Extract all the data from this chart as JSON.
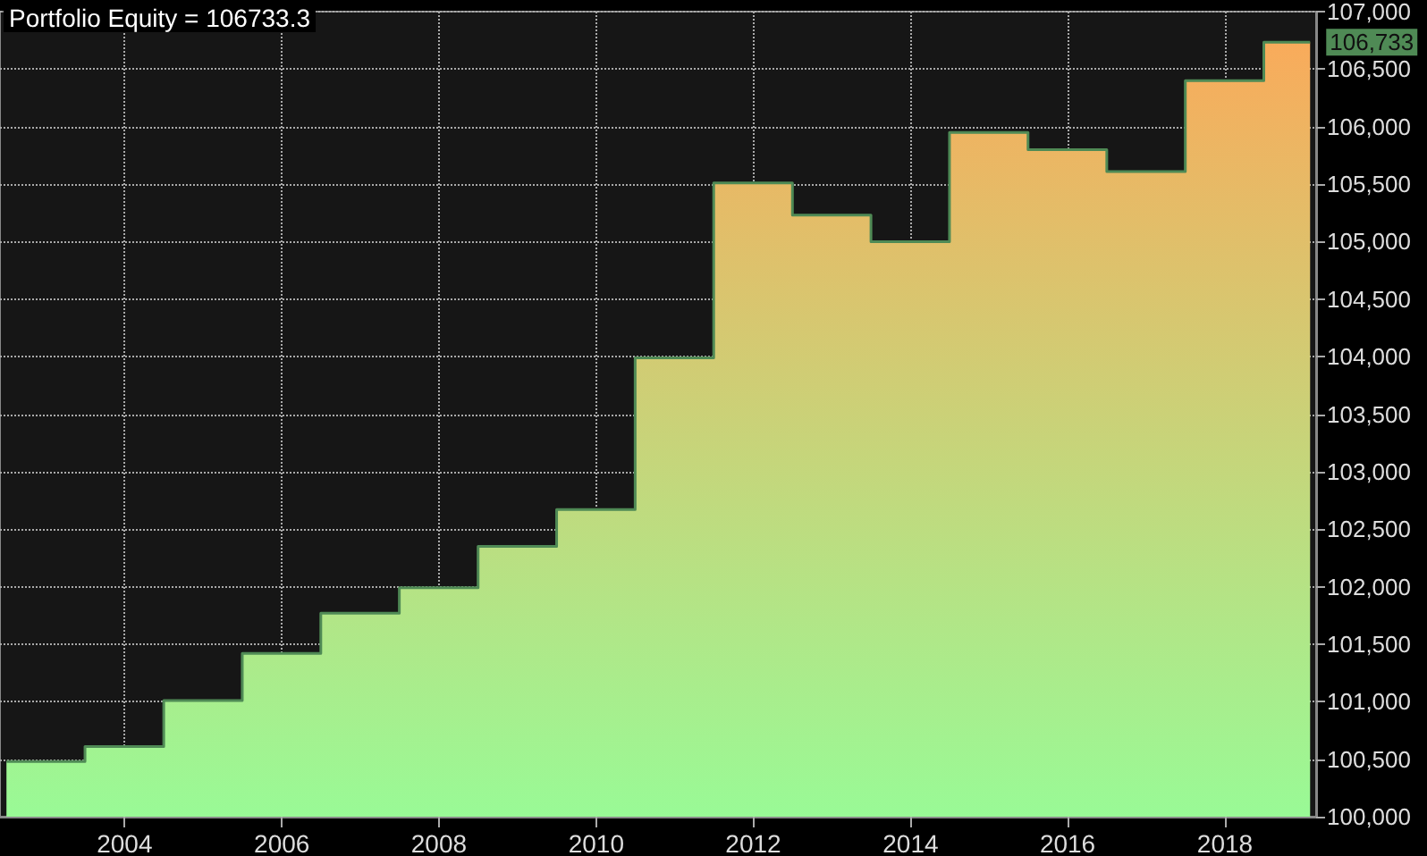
{
  "chart_data": {
    "type": "area",
    "title": "Portfolio Equity = 106733.3",
    "x": [
      "2002-07",
      "2003-07",
      "2003-07",
      "2004-07",
      "2004-07",
      "2005-07",
      "2005-07",
      "2006-07",
      "2006-07",
      "2007-07",
      "2007-07",
      "2008-07",
      "2008-07",
      "2009-07",
      "2009-07",
      "2010-07",
      "2010-07",
      "2011-07",
      "2011-07",
      "2012-07",
      "2012-07",
      "2013-07",
      "2013-07",
      "2014-07",
      "2014-07",
      "2015-07",
      "2015-07",
      "2016-07",
      "2016-07",
      "2017-07",
      "2017-07",
      "2018-07",
      "2018-07",
      "2019-02"
    ],
    "series": [
      {
        "color": "#4f8a55",
        "values": [
          100480,
          100480,
          100610,
          100610,
          101010,
          101010,
          101420,
          101420,
          101770,
          101770,
          101990,
          101990,
          102350,
          102350,
          102670,
          102670,
          103990,
          103990,
          105510,
          105510,
          105230,
          105230,
          105000,
          105000,
          105950,
          105950,
          105800,
          105800,
          105610,
          105610,
          106400,
          106400,
          106733,
          106733
        ]
      }
    ],
    "annotations": [
      {
        "text": "106,733",
        "x": "2019-02",
        "y": 106733
      }
    ],
    "xlim": [
      "2002-06",
      "2019-03"
    ],
    "xticks": [
      {
        "value": "2004",
        "label": "2004"
      },
      {
        "value": "2006",
        "label": "2006"
      },
      {
        "value": "2008",
        "label": "2008"
      },
      {
        "value": "2010",
        "label": "2010"
      },
      {
        "value": "2012",
        "label": "2012"
      },
      {
        "value": "2014",
        "label": "2014"
      },
      {
        "value": "2016",
        "label": "2016"
      },
      {
        "value": "2018",
        "label": "2018"
      }
    ],
    "ylim": [
      100000,
      107000
    ],
    "yticks": [
      {
        "value": 100000,
        "label": "100,000"
      },
      {
        "value": 100500,
        "label": "100,500"
      },
      {
        "value": 101000,
        "label": "101,000"
      },
      {
        "value": 101500,
        "label": "101,500"
      },
      {
        "value": 102000,
        "label": "102,000"
      },
      {
        "value": 102500,
        "label": "102,500"
      },
      {
        "value": 103000,
        "label": "103,000"
      },
      {
        "value": 103500,
        "label": "103,500"
      },
      {
        "value": 104000,
        "label": "104,000"
      },
      {
        "value": 104500,
        "label": "104,500"
      },
      {
        "value": 105000,
        "label": "105,000"
      },
      {
        "value": 105500,
        "label": "105,500"
      },
      {
        "value": 106000,
        "label": "106,000"
      },
      {
        "value": 106500,
        "label": "106,500"
      },
      {
        "value": 107000,
        "label": "107,000"
      }
    ],
    "grid": true,
    "marker": "none",
    "line_style": "solid"
  }
}
